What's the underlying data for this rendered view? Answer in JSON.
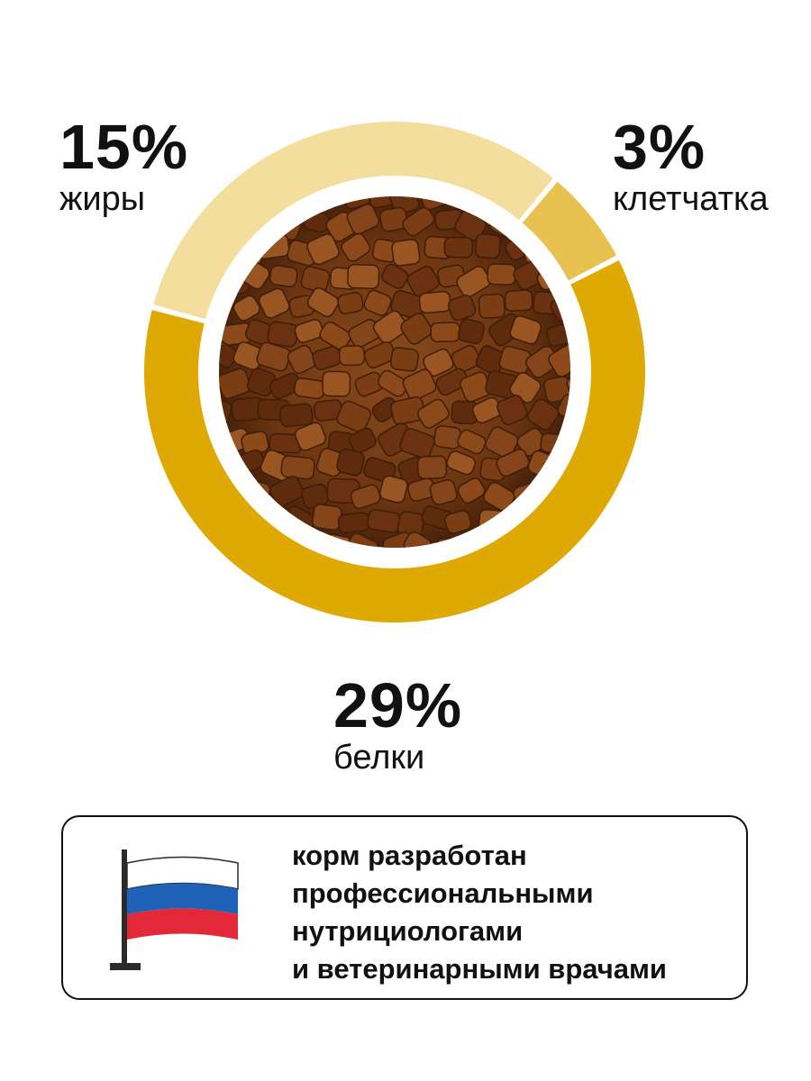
{
  "chart_data": {
    "type": "pie",
    "style": "donut",
    "center_image": "dry pet food kibble",
    "slices": [
      {
        "label": "жиры",
        "value_label": "15%",
        "value": 15,
        "color": "#F3DE9E"
      },
      {
        "label": "клетчатка",
        "value_label": "3%",
        "value": 3,
        "color": "#E8C250"
      },
      {
        "label": "белки",
        "value_label": "29%",
        "value": 29,
        "color": "#DFA904"
      }
    ]
  },
  "info_card": {
    "icon": "russian-flag-icon",
    "flag_colors": {
      "white": "#FFFFFF",
      "blue": "#1E63B8",
      "red": "#E3283A",
      "pole": "#2B2B2B"
    },
    "lines": [
      "корм разработан",
      "профессиональными",
      "нутрициологами",
      "и ветеринарными врачами"
    ]
  }
}
